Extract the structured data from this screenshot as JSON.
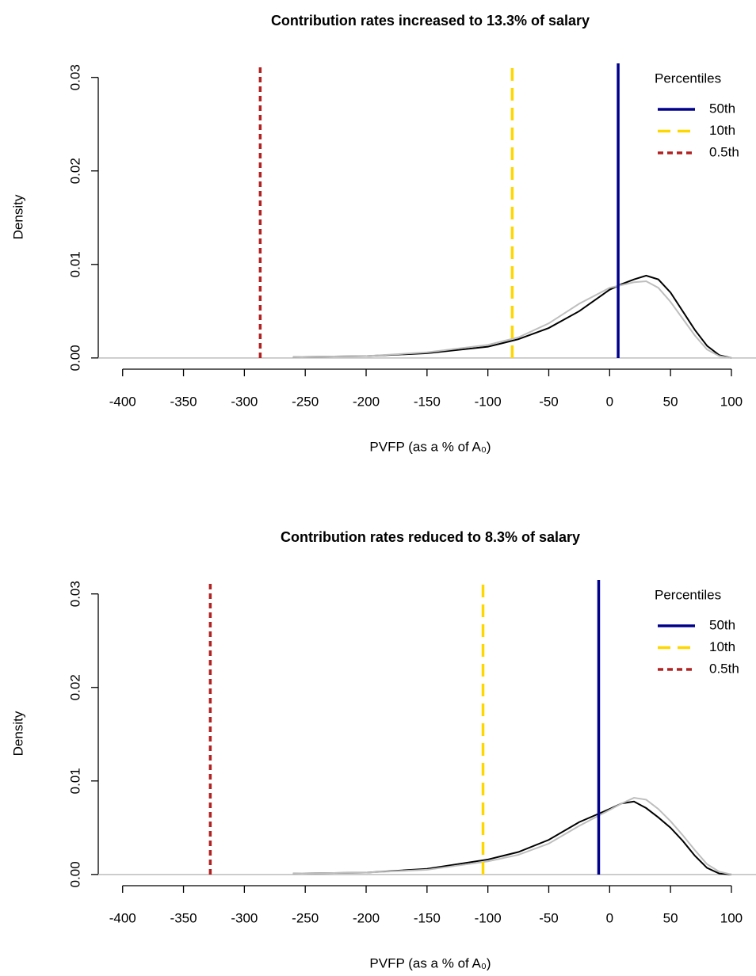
{
  "chart_data": [
    {
      "type": "line",
      "title": "Contribution rates increased to 13.3% of salary",
      "x_label": "PVFP (as a % of A₀)",
      "y_label": "Density",
      "x": [
        -260,
        -200,
        -150,
        -100,
        -75,
        -50,
        -25,
        0,
        10,
        20,
        30,
        40,
        50,
        60,
        70,
        80,
        90,
        100
      ],
      "series": [
        {
          "color": "#000000",
          "values": [
            0.0001,
            0.0002,
            0.0005,
            0.0012,
            0.002,
            0.0032,
            0.005,
            0.0073,
            0.0079,
            0.0084,
            0.0088,
            0.0084,
            0.007,
            0.005,
            0.003,
            0.0013,
            0.0003,
            0
          ]
        },
        {
          "color": "#bebebe",
          "values": [
            0.0001,
            0.0002,
            0.0006,
            0.0014,
            0.0022,
            0.0037,
            0.0058,
            0.0075,
            0.0078,
            0.0081,
            0.0082,
            0.0075,
            0.006,
            0.0042,
            0.0024,
            0.0009,
            0.0002,
            0
          ]
        }
      ],
      "legend_title": "Percentiles",
      "vlines": [
        {
          "name": "50th",
          "color": "#00008b",
          "dash": "none",
          "value": 7
        },
        {
          "name": "10th",
          "color": "#ffd700",
          "dash": "16,9",
          "value": -80
        },
        {
          "name": "0.5th",
          "color": "#b22222",
          "dash": "7,5",
          "value": -287
        }
      ],
      "xlim": [
        -420,
        115
      ],
      "ylim": [
        -0.0012,
        0.0315
      ],
      "xticks": [
        -400,
        -350,
        -300,
        -250,
        -200,
        -150,
        -100,
        -50,
        0,
        50,
        100
      ],
      "yticks": [
        {
          "value": 0,
          "label": "0.00"
        },
        {
          "value": 0.01,
          "label": "0.01"
        },
        {
          "value": 0.02,
          "label": "0.02"
        },
        {
          "value": 0.03,
          "label": "0.03"
        }
      ],
      "legend": "top-right"
    },
    {
      "type": "line",
      "title": "Contribution rates reduced to 8.3% of salary",
      "x_label": "PVFP (as a % of A₀)",
      "y_label": "Density",
      "x": [
        -260,
        -200,
        -150,
        -100,
        -75,
        -50,
        -25,
        0,
        10,
        20,
        30,
        40,
        50,
        60,
        70,
        80,
        90,
        100
      ],
      "series": [
        {
          "color": "#000000",
          "values": [
            0.0001,
            0.0002,
            0.0006,
            0.0016,
            0.0024,
            0.0037,
            0.0056,
            0.007,
            0.0076,
            0.0078,
            0.0071,
            0.0061,
            0.005,
            0.0036,
            0.002,
            0.0007,
            0.0001,
            0
          ]
        },
        {
          "color": "#bebebe",
          "values": [
            0.0001,
            0.0002,
            0.0005,
            0.0014,
            0.0021,
            0.0033,
            0.0052,
            0.0069,
            0.0076,
            0.0082,
            0.008,
            0.007,
            0.0057,
            0.0042,
            0.0026,
            0.0011,
            0.0003,
            0
          ]
        }
      ],
      "legend_title": "Percentiles",
      "vlines": [
        {
          "name": "50th",
          "color": "#00008b",
          "dash": "none",
          "value": -9
        },
        {
          "name": "10th",
          "color": "#ffd700",
          "dash": "16,9",
          "value": -104
        },
        {
          "name": "0.5th",
          "color": "#b22222",
          "dash": "7,5",
          "value": -328
        }
      ],
      "xlim": [
        -420,
        115
      ],
      "ylim": [
        -0.0012,
        0.0315
      ],
      "xticks": [
        -400,
        -350,
        -300,
        -250,
        -200,
        -150,
        -100,
        -50,
        0,
        50,
        100
      ],
      "yticks": [
        {
          "value": 0,
          "label": "0.00"
        },
        {
          "value": 0.01,
          "label": "0.01"
        },
        {
          "value": 0.02,
          "label": "0.02"
        },
        {
          "value": 0.03,
          "label": "0.03"
        }
      ],
      "legend": "top-right"
    }
  ]
}
